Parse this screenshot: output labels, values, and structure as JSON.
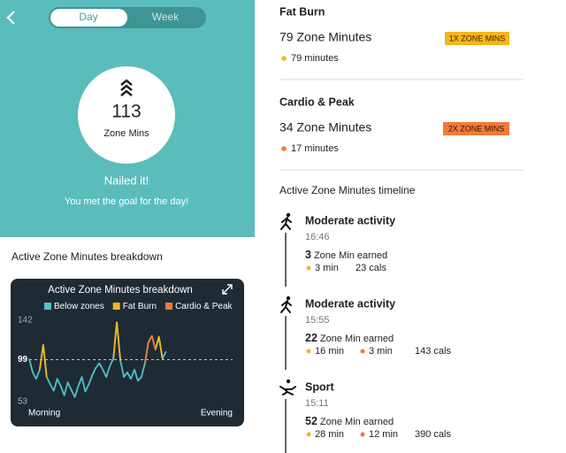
{
  "header": {
    "tabs": [
      "Day",
      "Week"
    ],
    "total": 113,
    "total_label": "Zone Mins",
    "status": "Nailed it!",
    "message": "You met the goal for the day!"
  },
  "breakdown_heading": "Active Zone Minutes breakdown",
  "chart_data": {
    "type": "line",
    "title": "Active Zone Minutes breakdown",
    "x": [
      0,
      1,
      2,
      3,
      4,
      5,
      6,
      7,
      8,
      9,
      10,
      11,
      12,
      13,
      14,
      15,
      16,
      17,
      18,
      19,
      20,
      21,
      22,
      23,
      24,
      25,
      26,
      27,
      28,
      29,
      30,
      31,
      32,
      33,
      34,
      35,
      36,
      37,
      38,
      39
    ],
    "xlim": [
      0,
      58
    ],
    "x_labels": [
      "Morning",
      "Evening"
    ],
    "ylim": [
      53,
      142
    ],
    "yticks": [
      53,
      99,
      142
    ],
    "reference_line": 99,
    "series": [
      {
        "name": "Below zones",
        "color": "#4cc5c5",
        "values": [
          100,
          85,
          78,
          88,
          115,
          80,
          72,
          65,
          78,
          70,
          60,
          74,
          66,
          58,
          70,
          80,
          64,
          72,
          82,
          90,
          95,
          88,
          80,
          92,
          100,
          140,
          98,
          80,
          85,
          78,
          88,
          76,
          80,
          95,
          118,
          125,
          110,
          124,
          100,
          108
        ]
      },
      {
        "name": "Fat Burn",
        "color": "#f5b51c",
        "values": [
          null,
          null,
          null,
          88,
          115,
          80,
          null,
          null,
          null,
          null,
          null,
          null,
          null,
          null,
          null,
          null,
          null,
          null,
          null,
          null,
          null,
          null,
          null,
          null,
          100,
          140,
          98,
          null,
          null,
          null,
          null,
          null,
          null,
          null,
          null,
          null,
          110,
          124,
          100,
          null
        ]
      },
      {
        "name": "Cardio & Peak",
        "color": "#f07a3a",
        "values": [
          null,
          null,
          null,
          null,
          null,
          null,
          null,
          null,
          null,
          null,
          null,
          null,
          null,
          null,
          null,
          null,
          null,
          null,
          null,
          null,
          null,
          null,
          null,
          null,
          null,
          null,
          null,
          null,
          null,
          null,
          null,
          null,
          null,
          95,
          118,
          125,
          110,
          null,
          null,
          null
        ]
      }
    ]
  },
  "zones": [
    {
      "name": "Fat Burn",
      "minutes_label": "79 Zone Minutes",
      "badge": "1X ZONE MINS",
      "detail": "79 minutes"
    },
    {
      "name": "Cardio & Peak",
      "minutes_label": "34 Zone Minutes",
      "badge": "2X ZONE MINS",
      "detail": "17 minutes"
    }
  ],
  "timeline": {
    "heading": "Active Zone Minutes timeline",
    "earned_label": "Zone Min earned",
    "entries": [
      {
        "activity": "Moderate activity",
        "time": "16:46",
        "earned": 3,
        "fat_burn": "3 min",
        "calories": "23 cals"
      },
      {
        "activity": "Moderate activity",
        "time": "15:55",
        "earned": 22,
        "fat_burn": "16 min",
        "cardio": "3 min",
        "calories": "143 cals"
      },
      {
        "activity": "Sport",
        "time": "15:11",
        "earned": 52,
        "fat_burn": "28 min",
        "cardio": "12 min",
        "calories": "390 cals"
      }
    ]
  }
}
